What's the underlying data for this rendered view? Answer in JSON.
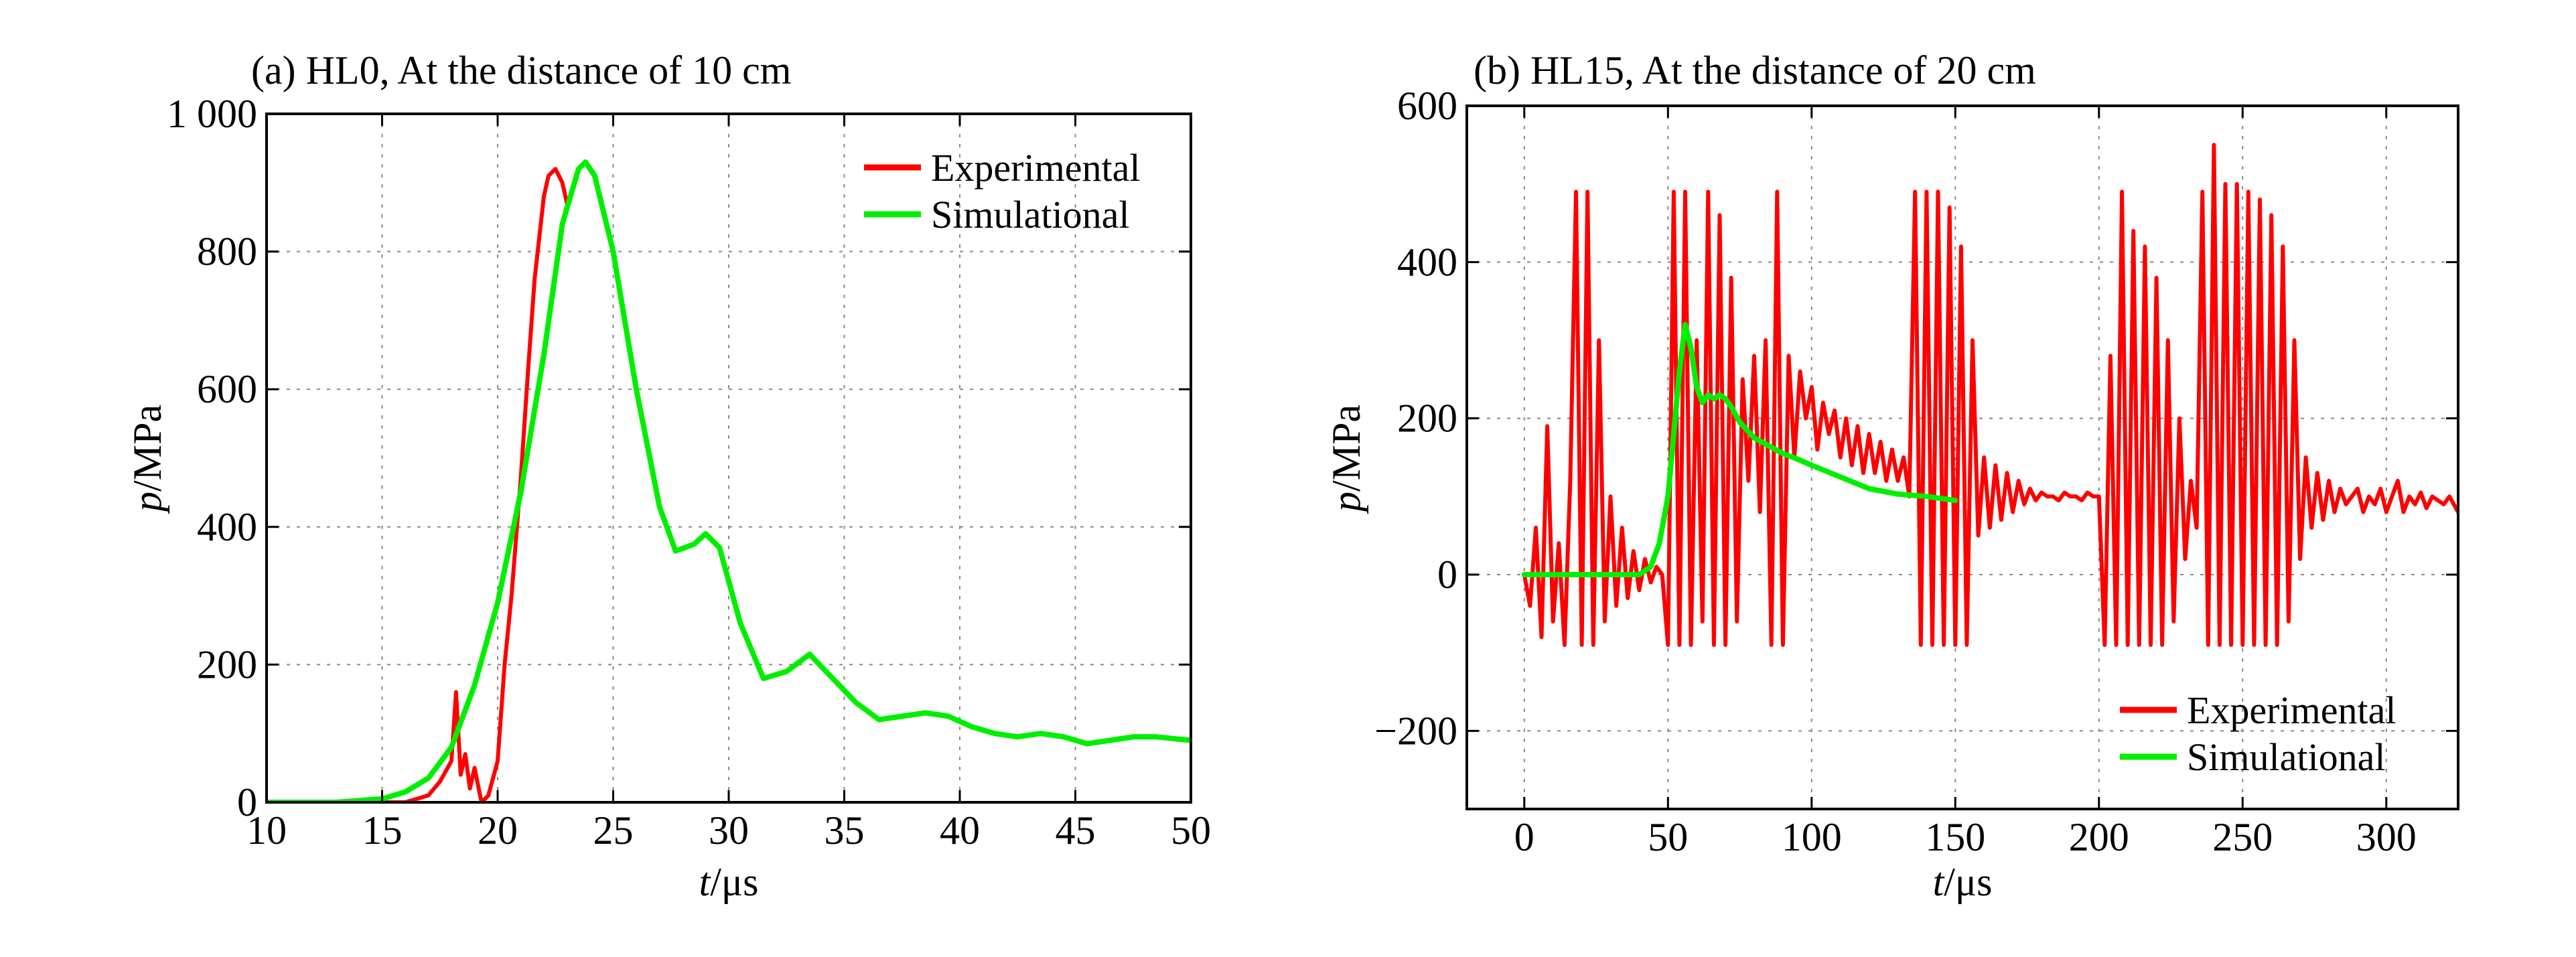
{
  "chart_data": [
    {
      "type": "line",
      "title": "(a) HL0, At the distance of 10 cm",
      "xlabel_var": "t",
      "xlabel_unit": "/μs",
      "ylabel_var": "p",
      "ylabel_unit": "/MPa",
      "xlim": [
        10,
        50
      ],
      "ylim": [
        0,
        1000
      ],
      "xticks": [
        10,
        15,
        20,
        25,
        30,
        35,
        40,
        45,
        50
      ],
      "yticks": [
        0,
        200,
        400,
        600,
        800,
        1000
      ],
      "ytick_labels": [
        "0",
        "200",
        "400",
        "600",
        "800",
        "1 000"
      ],
      "grid": true,
      "legend_position": "top-right",
      "series": [
        {
          "name": "Experimental",
          "color": "#ff0000",
          "x": [
            10,
            16,
            17,
            17.5,
            18,
            18.2,
            18.4,
            18.6,
            18.8,
            19,
            19.3,
            19.6,
            20,
            20.3,
            20.6,
            21,
            21.3,
            21.6,
            22,
            22.2,
            22.5,
            22.8,
            23
          ],
          "y": [
            0,
            0,
            10,
            30,
            60,
            160,
            40,
            70,
            20,
            50,
            0,
            10,
            60,
            200,
            300,
            470,
            620,
            760,
            880,
            910,
            920,
            900,
            870
          ]
        },
        {
          "name": "Simulational",
          "color": "#00ee00",
          "x": [
            10,
            13,
            15,
            16,
            17,
            18,
            19,
            20,
            21,
            22,
            22.8,
            23.5,
            23.8,
            24.2,
            25,
            26,
            27,
            27.7,
            28.5,
            29,
            29.6,
            30.5,
            31.5,
            32.5,
            33.5,
            34.5,
            35.5,
            36.5,
            37.5,
            38.5,
            39.5,
            40.5,
            41.5,
            42.5,
            43.5,
            44.5,
            45.5,
            46.5,
            47.5,
            48.5,
            50
          ],
          "y": [
            0,
            0,
            5,
            15,
            35,
            80,
            170,
            290,
            450,
            650,
            840,
            920,
            930,
            910,
            800,
            600,
            430,
            365,
            375,
            390,
            370,
            260,
            180,
            190,
            215,
            180,
            145,
            120,
            125,
            130,
            125,
            110,
            100,
            95,
            100,
            95,
            85,
            90,
            95,
            95,
            90
          ]
        }
      ]
    },
    {
      "type": "line",
      "title": "(b) HL15, At the distance of 20 cm",
      "xlabel_var": "t",
      "xlabel_unit": "/μs",
      "ylabel_var": "p",
      "ylabel_unit": "/MPa",
      "xlim": [
        -20,
        325
      ],
      "ylim": [
        -300,
        600
      ],
      "xticks": [
        0,
        50,
        100,
        150,
        200,
        250,
        300
      ],
      "yticks": [
        -200,
        0,
        200,
        400,
        600
      ],
      "ytick_labels": [
        "−200",
        "0",
        "200",
        "400",
        "600"
      ],
      "grid": true,
      "legend_position": "bottom-right",
      "series": [
        {
          "name": "Experimental",
          "color": "#ff0000",
          "x": [
            0,
            2,
            4,
            6,
            8,
            10,
            12,
            14,
            16,
            18,
            20,
            22,
            24,
            26,
            28,
            30,
            32,
            34,
            36,
            38,
            40,
            42,
            44,
            46,
            48,
            50,
            52,
            54,
            56,
            58,
            60,
            62,
            64,
            66,
            68,
            70,
            72,
            74,
            76,
            78,
            80,
            82,
            84,
            86,
            88,
            90,
            92,
            94,
            96,
            98,
            100,
            102,
            104,
            106,
            108,
            110,
            112,
            114,
            116,
            118,
            120,
            122,
            124,
            126,
            128,
            130,
            132,
            134,
            136,
            138,
            140,
            142,
            144,
            146,
            148,
            150,
            152,
            154,
            156,
            158,
            160,
            162,
            164,
            166,
            168,
            170,
            172,
            174,
            176,
            178,
            180,
            182,
            184,
            186,
            188,
            190,
            192,
            194,
            196,
            198,
            200,
            202,
            204,
            206,
            208,
            210,
            212,
            214,
            216,
            218,
            220,
            222,
            224,
            226,
            228,
            230,
            232,
            234,
            236,
            238,
            240,
            242,
            244,
            246,
            248,
            250,
            252,
            254,
            256,
            258,
            260,
            262,
            264,
            266,
            268,
            270,
            272,
            274,
            276,
            278,
            280,
            282,
            284,
            286,
            288,
            290,
            292,
            294,
            296,
            298,
            300,
            302,
            304,
            306,
            308,
            310,
            312,
            314,
            316,
            318,
            320,
            322,
            325
          ],
          "y": [
            0,
            -40,
            60,
            -80,
            190,
            -60,
            40,
            -90,
            120,
            490,
            -90,
            490,
            -90,
            300,
            -60,
            100,
            -40,
            60,
            -30,
            30,
            -20,
            20,
            -10,
            10,
            0,
            -90,
            490,
            -90,
            490,
            -90,
            300,
            -60,
            490,
            -90,
            460,
            -90,
            380,
            -60,
            250,
            120,
            280,
            80,
            300,
            -90,
            490,
            -90,
            280,
            150,
            260,
            200,
            240,
            160,
            220,
            180,
            210,
            150,
            200,
            140,
            190,
            130,
            180,
            130,
            170,
            120,
            160,
            120,
            150,
            100,
            490,
            -90,
            490,
            -90,
            490,
            -90,
            470,
            -90,
            420,
            -90,
            300,
            50,
            150,
            60,
            140,
            70,
            130,
            80,
            120,
            90,
            110,
            95,
            105,
            100,
            100,
            95,
            105,
            100,
            100,
            95,
            105,
            100,
            100,
            -90,
            280,
            -90,
            490,
            -90,
            440,
            -90,
            420,
            -90,
            380,
            -90,
            300,
            -60,
            200,
            20,
            120,
            60,
            490,
            -90,
            550,
            -90,
            500,
            -90,
            500,
            -90,
            490,
            -90,
            480,
            -90,
            460,
            -90,
            420,
            -60,
            300,
            20,
            150,
            60,
            130,
            70,
            120,
            80,
            110,
            90,
            100,
            110,
            80,
            100,
            90,
            110,
            80,
            100,
            120,
            80,
            100,
            90,
            105,
            85,
            100,
            95,
            90,
            100,
            80
          ]
        },
        {
          "name": "Simulational",
          "color": "#00ee00",
          "x": [
            0,
            10,
            20,
            30,
            40,
            44,
            47,
            50,
            52,
            54,
            56,
            58,
            60,
            62,
            64,
            66,
            68,
            70,
            72,
            75,
            80,
            85,
            90,
            95,
            100,
            110,
            120,
            130,
            140,
            150
          ],
          "y": [
            0,
            0,
            0,
            0,
            0,
            10,
            40,
            100,
            180,
            260,
            320,
            290,
            240,
            220,
            230,
            225,
            230,
            225,
            215,
            195,
            175,
            165,
            155,
            148,
            140,
            125,
            110,
            103,
            100,
            95
          ]
        }
      ]
    }
  ]
}
